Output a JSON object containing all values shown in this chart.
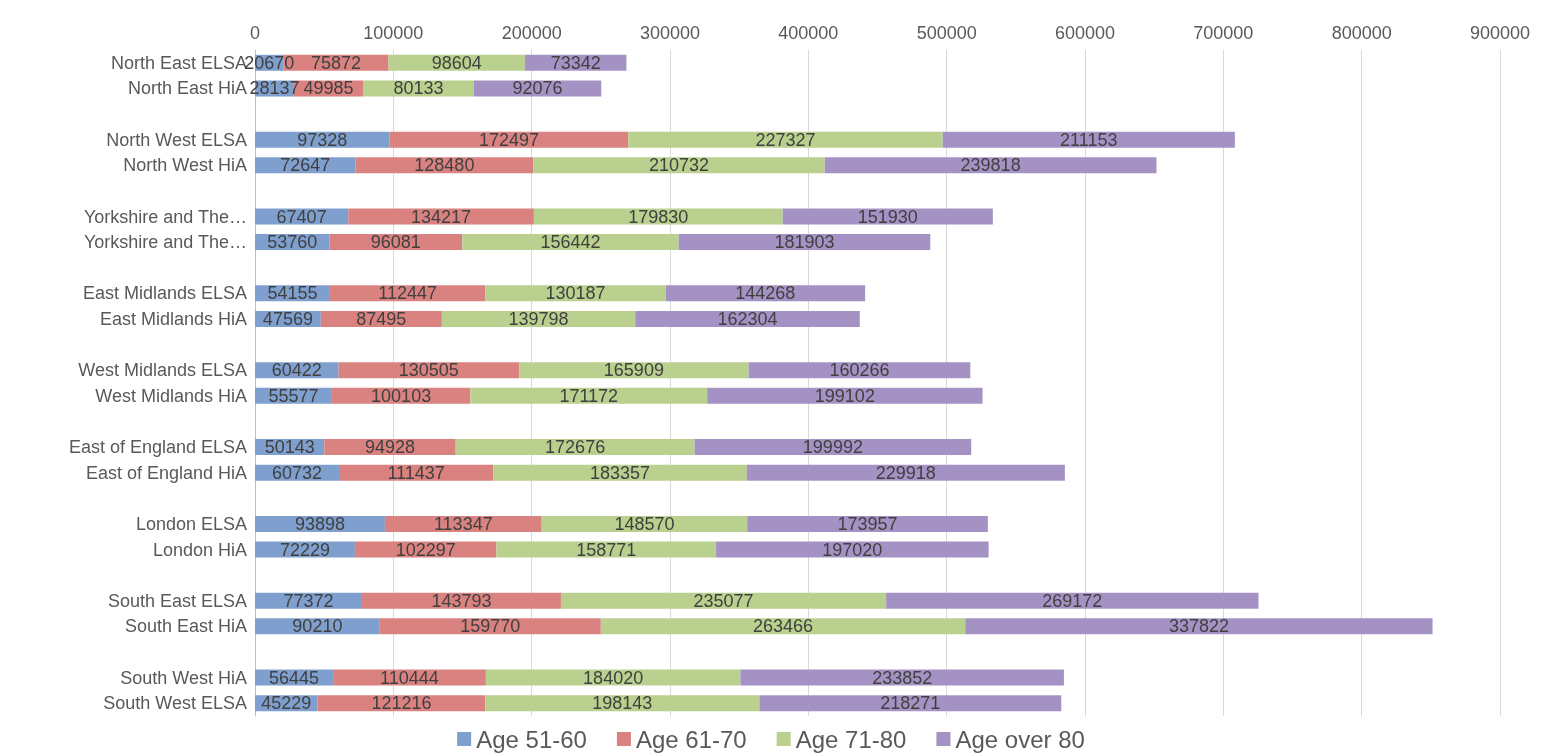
{
  "chart_data": {
    "type": "bar",
    "orientation": "horizontal",
    "stacked": true,
    "data_labels": true,
    "grid": "x",
    "legend": "bottom",
    "categories": [
      "North East ELSA",
      "North East HiA",
      null,
      "North West ELSA",
      "North West HiA",
      null,
      "Yorkshire and The…",
      "Yorkshire and The…",
      null,
      "East Midlands ELSA",
      "East Midlands HiA",
      null,
      "West Midlands ELSA",
      "West Midlands HiA",
      null,
      "East of England ELSA",
      "East of England HiA",
      null,
      "London ELSA",
      "London HiA",
      null,
      "South East ELSA",
      "South East HiA",
      null,
      "South West HiA",
      "South West ELSA"
    ],
    "xlim": [
      0,
      900000
    ],
    "xticks": [
      0,
      100000,
      200000,
      300000,
      400000,
      500000,
      600000,
      700000,
      800000,
      900000
    ],
    "series": [
      {
        "name": "Age 51-60",
        "color": "#7f9fce",
        "values": [
          20670,
          28137,
          null,
          97328,
          72647,
          null,
          67407,
          53760,
          null,
          54155,
          47569,
          null,
          60422,
          55577,
          null,
          50143,
          60732,
          null,
          93898,
          72229,
          null,
          77372,
          90210,
          null,
          56445,
          45229
        ]
      },
      {
        "name": "Age 61-70",
        "color": "#d98280",
        "values": [
          75872,
          49985,
          null,
          172497,
          128480,
          null,
          134217,
          96081,
          null,
          112447,
          87495,
          null,
          130505,
          100103,
          null,
          94928,
          111437,
          null,
          113347,
          102297,
          null,
          143793,
          159770,
          null,
          110444,
          121216
        ]
      },
      {
        "name": "Age 71-80",
        "color": "#b9d08e",
        "values": [
          98604,
          80133,
          null,
          227327,
          210732,
          null,
          179830,
          156442,
          null,
          130187,
          139798,
          null,
          165909,
          171172,
          null,
          172676,
          183357,
          null,
          148570,
          158771,
          null,
          235077,
          263466,
          null,
          184020,
          198143
        ]
      },
      {
        "name": "Age over 80",
        "color": "#a592c4",
        "values": [
          73342,
          92076,
          null,
          211153,
          239818,
          null,
          151930,
          181903,
          null,
          144268,
          162304,
          null,
          160266,
          199102,
          null,
          199992,
          229918,
          null,
          173957,
          197020,
          null,
          269172,
          337822,
          null,
          233852,
          218271
        ]
      }
    ]
  }
}
